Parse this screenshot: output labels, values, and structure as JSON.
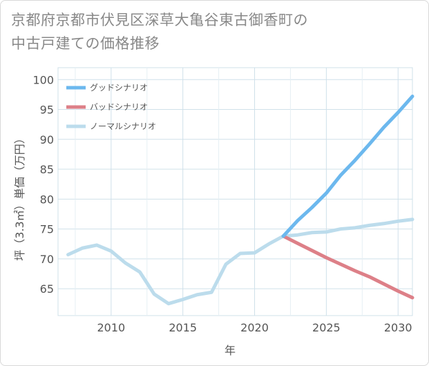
{
  "title_lines": [
    "京都府京都市伏見区深草大亀谷東古御香町の",
    "中古戸建ての価格推移"
  ],
  "chart_data": {
    "type": "line",
    "xlabel": "年",
    "ylabel": "坪（3.3㎡）単価（万円）",
    "xlim": [
      2006.3,
      2031
    ],
    "ylim": [
      60.5,
      102
    ],
    "x_ticks": [
      2010,
      2015,
      2020,
      2025,
      2030
    ],
    "y_ticks": [
      65,
      70,
      75,
      80,
      85,
      90,
      95,
      100
    ],
    "grid": true,
    "legend_position": "top-left",
    "series": [
      {
        "name": "グッドシナリオ",
        "color": "#6cb8ee",
        "x": [
          2022,
          2023,
          2024,
          2025,
          2026,
          2027,
          2028,
          2029,
          2030,
          2031
        ],
        "y": [
          73.8,
          76.4,
          78.6,
          81.0,
          84.0,
          86.5,
          89.2,
          92.0,
          94.5,
          97.2
        ]
      },
      {
        "name": "バッドシナリオ",
        "color": "#dd8088",
        "x": [
          2022,
          2023,
          2024,
          2025,
          2026,
          2027,
          2028,
          2029,
          2030,
          2031
        ],
        "y": [
          73.8,
          72.6,
          71.4,
          70.2,
          69.1,
          68.0,
          67.0,
          65.8,
          64.6,
          63.5
        ]
      },
      {
        "name": "ノーマルシナリオ",
        "color": "#bcdcec",
        "x": [
          2007,
          2008,
          2009,
          2010,
          2011,
          2012,
          2013,
          2014,
          2015,
          2016,
          2017,
          2018,
          2019,
          2020,
          2021,
          2022,
          2023,
          2024,
          2025,
          2026,
          2027,
          2028,
          2029,
          2030,
          2031
        ],
        "y": [
          70.7,
          71.8,
          72.3,
          71.3,
          69.3,
          67.8,
          64.1,
          62.5,
          63.2,
          64.0,
          64.4,
          69.1,
          70.9,
          71.0,
          72.5,
          73.8,
          74.0,
          74.4,
          74.5,
          75.0,
          75.2,
          75.6,
          75.9,
          76.3,
          76.6
        ]
      }
    ]
  }
}
